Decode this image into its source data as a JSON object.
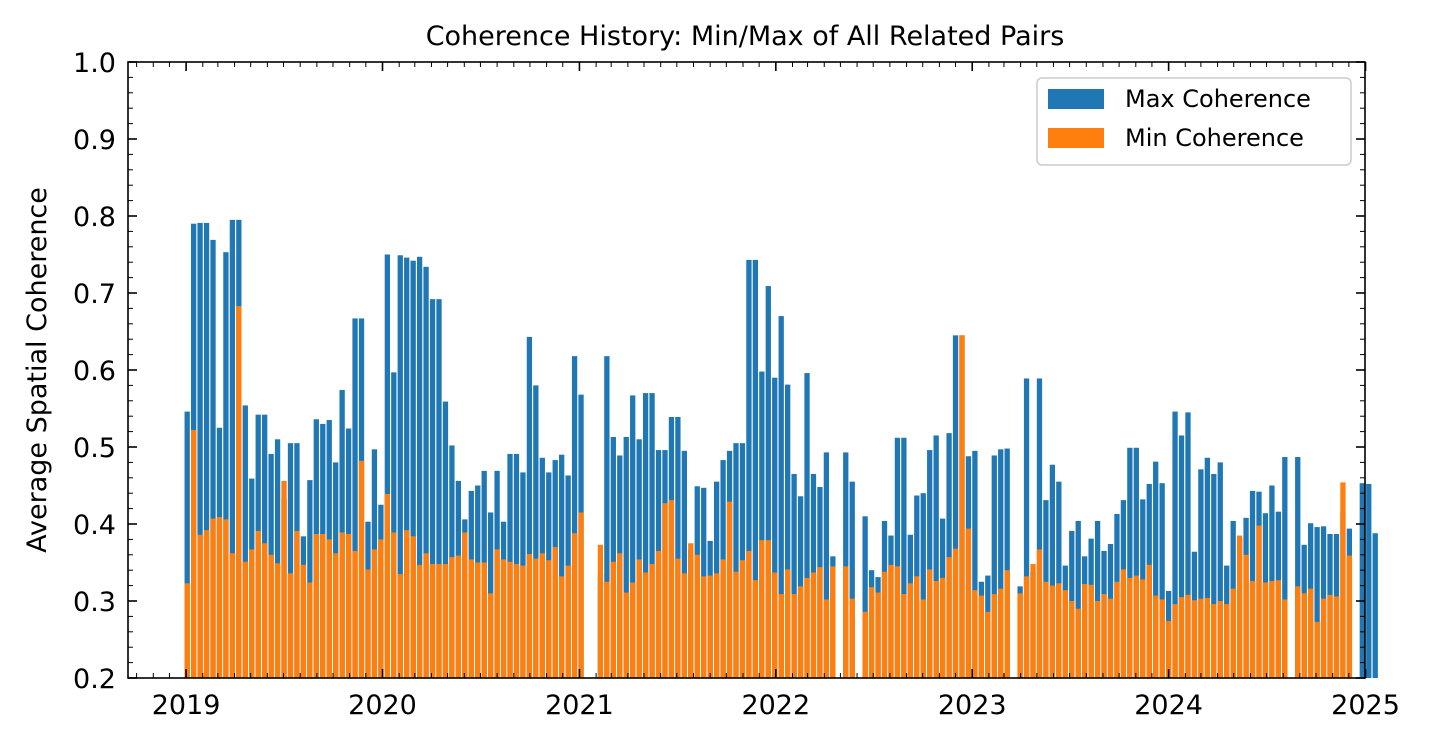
{
  "chart_data": {
    "type": "bar",
    "title": "Coherence History: Min/Max of All Related Pairs",
    "xlabel": "",
    "ylabel": "Average Spatial Coherence",
    "xlim": [
      "2018-09-15",
      "2024-12-31"
    ],
    "ylim": [
      0.2,
      1.0
    ],
    "x_ticks": [
      "2019",
      "2020",
      "2021",
      "2022",
      "2023",
      "2024",
      "2025"
    ],
    "y_ticks": [
      "0.2",
      "0.3",
      "0.4",
      "0.5",
      "0.6",
      "0.7",
      "0.8",
      "0.9",
      "1.0"
    ],
    "grid": false,
    "legend_position": "top-right",
    "bar_mode": "overlay",
    "series": [
      {
        "name": "Max Coherence",
        "color": "#1f77b4",
        "values": [
          0.546,
          0.79,
          0.791,
          0.791,
          0.769,
          0.525,
          0.753,
          0.795,
          0.795,
          0.554,
          0.459,
          0.542,
          0.542,
          0.491,
          0.51,
          0.433,
          0.505,
          0.505,
          0.384,
          0.457,
          0.536,
          0.53,
          0.535,
          0.48,
          0.574,
          0.524,
          0.667,
          0.667,
          0.403,
          0.497,
          0.425,
          0.75,
          0.597,
          0.749,
          0.746,
          0.742,
          0.747,
          0.734,
          0.692,
          0.692,
          0.559,
          0.502,
          0.456,
          0.406,
          0.443,
          0.45,
          0.469,
          0.415,
          0.469,
          0.403,
          0.491,
          0.491,
          0.467,
          0.643,
          0.58,
          0.486,
          0.467,
          0.483,
          0.49,
          0.463,
          0.618,
          0.568,
          0.335,
          0.618,
          0.513,
          0.489,
          0.513,
          0.567,
          0.51,
          0.57,
          0.57,
          0.496,
          0.496,
          0.539,
          0.539,
          0.495,
          0.367,
          0.449,
          0.447,
          0.378,
          0.455,
          0.483,
          0.495,
          0.505,
          0.505,
          0.743,
          0.743,
          0.598,
          0.709,
          0.59,
          0.67,
          0.581,
          0.465,
          0.436,
          0.596,
          0.465,
          0.448,
          0.493,
          0.358,
          0.493,
          0.455,
          0.41,
          0.34,
          0.331,
          0.404,
          0.385,
          0.512,
          0.512,
          0.386,
          0.437,
          0.44,
          0.496,
          0.515,
          0.407,
          0.518,
          0.645,
          0.645,
          0.488,
          0.495,
          0.325,
          0.333,
          0.489,
          0.497,
          0.498,
          0.319,
          0.589,
          0.338,
          0.589,
          0.431,
          0.477,
          0.455,
          0.346,
          0.391,
          0.404,
          0.358,
          0.381,
          0.404,
          0.365,
          0.374,
          0.413,
          0.431,
          0.499,
          0.499,
          0.432,
          0.452,
          0.481,
          0.453,
          0.313,
          0.546,
          0.515,
          0.545,
          0.364,
          0.471,
          0.486,
          0.465,
          0.48,
          0.346,
          0.404,
          0.381,
          0.408,
          0.443,
          0.442,
          0.414,
          0.45,
          0.416,
          0.487,
          0.487,
          0.373,
          0.401,
          0.396,
          0.397,
          0.387,
          0.387,
          0.415,
          0.394,
          0.453,
          0.452,
          0.388
        ]
      },
      {
        "name": "Min Coherence",
        "color": "#ff7f0e",
        "values": [
          0.323,
          0.522,
          0.386,
          0.392,
          0.407,
          0.409,
          0.406,
          0.362,
          0.683,
          0.351,
          0.367,
          0.391,
          0.375,
          0.36,
          0.349,
          0.456,
          0.336,
          0.391,
          0.347,
          0.324,
          0.387,
          0.387,
          0.38,
          0.362,
          0.389,
          0.387,
          0.365,
          0.482,
          0.341,
          0.367,
          0.38,
          0.439,
          0.389,
          0.335,
          0.392,
          0.384,
          0.347,
          0.362,
          0.348,
          0.348,
          0.348,
          0.357,
          0.359,
          0.389,
          0.354,
          0.35,
          0.35,
          0.31,
          0.367,
          0.354,
          0.351,
          0.348,
          0.346,
          0.361,
          0.355,
          0.362,
          0.353,
          0.37,
          0.332,
          0.346,
          0.388,
          0.415,
          0.373,
          0.325,
          0.351,
          0.362,
          0.311,
          0.324,
          0.354,
          0.337,
          0.348,
          0.365,
          0.427,
          0.431,
          0.355,
          0.336,
          0.375,
          0.36,
          0.332,
          0.333,
          0.336,
          0.354,
          0.429,
          0.338,
          0.353,
          0.365,
          0.327,
          0.379,
          0.379,
          0.337,
          0.309,
          0.341,
          0.309,
          0.319,
          0.33,
          0.337,
          0.344,
          0.302,
          0.345,
          0.345,
          0.303,
          0.286,
          0.318,
          0.311,
          0.338,
          0.347,
          0.345,
          0.309,
          0.323,
          0.332,
          0.302,
          0.341,
          0.326,
          0.33,
          0.357,
          0.368,
          0.645,
          0.394,
          0.314,
          0.307,
          0.286,
          0.309,
          0.316,
          0.34,
          0.31,
          0.332,
          0.348,
          0.367,
          0.325,
          0.32,
          0.323,
          0.314,
          0.3,
          0.29,
          0.322,
          0.321,
          0.3,
          0.309,
          0.303,
          0.325,
          0.341,
          0.33,
          0.333,
          0.328,
          0.347,
          0.307,
          0.302,
          0.274,
          0.296,
          0.305,
          0.308,
          0.301,
          0.303,
          0.304,
          0.296,
          0.3,
          0.296,
          0.316,
          0.385,
          0.36,
          0.326,
          0.398,
          0.324,
          0.326,
          0.327,
          0.302,
          0.319,
          0.31,
          0.316,
          0.273,
          0.303,
          0.308,
          0.306,
          0.454,
          0.359
        ]
      }
    ]
  }
}
